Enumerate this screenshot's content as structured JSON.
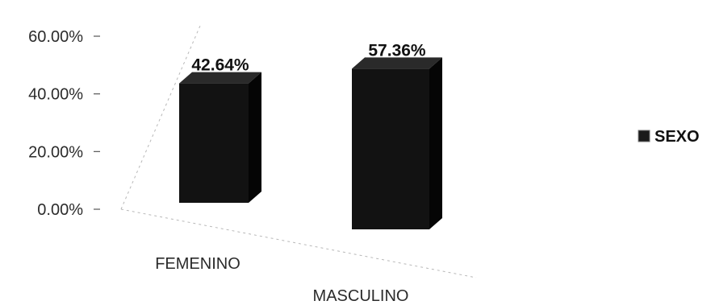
{
  "chart_data": {
    "type": "bar",
    "categories": [
      "FEMENINO",
      "MASCULINO"
    ],
    "series": [
      {
        "name": "SEXO",
        "values": [
          42.64,
          57.36
        ]
      }
    ],
    "data_labels": [
      "42.64%",
      "57.36%"
    ],
    "y_ticks": [
      "0.00%",
      "20.00%",
      "40.00%",
      "60.00%"
    ],
    "y_tick_values": [
      0,
      20,
      40,
      60
    ],
    "ylim": [
      0,
      60
    ],
    "title": "",
    "xlabel": "",
    "ylabel": "",
    "legend": {
      "position": "right",
      "label": "SEXO"
    },
    "grid": false,
    "style": "3d-column",
    "bar_color": "#121212"
  }
}
